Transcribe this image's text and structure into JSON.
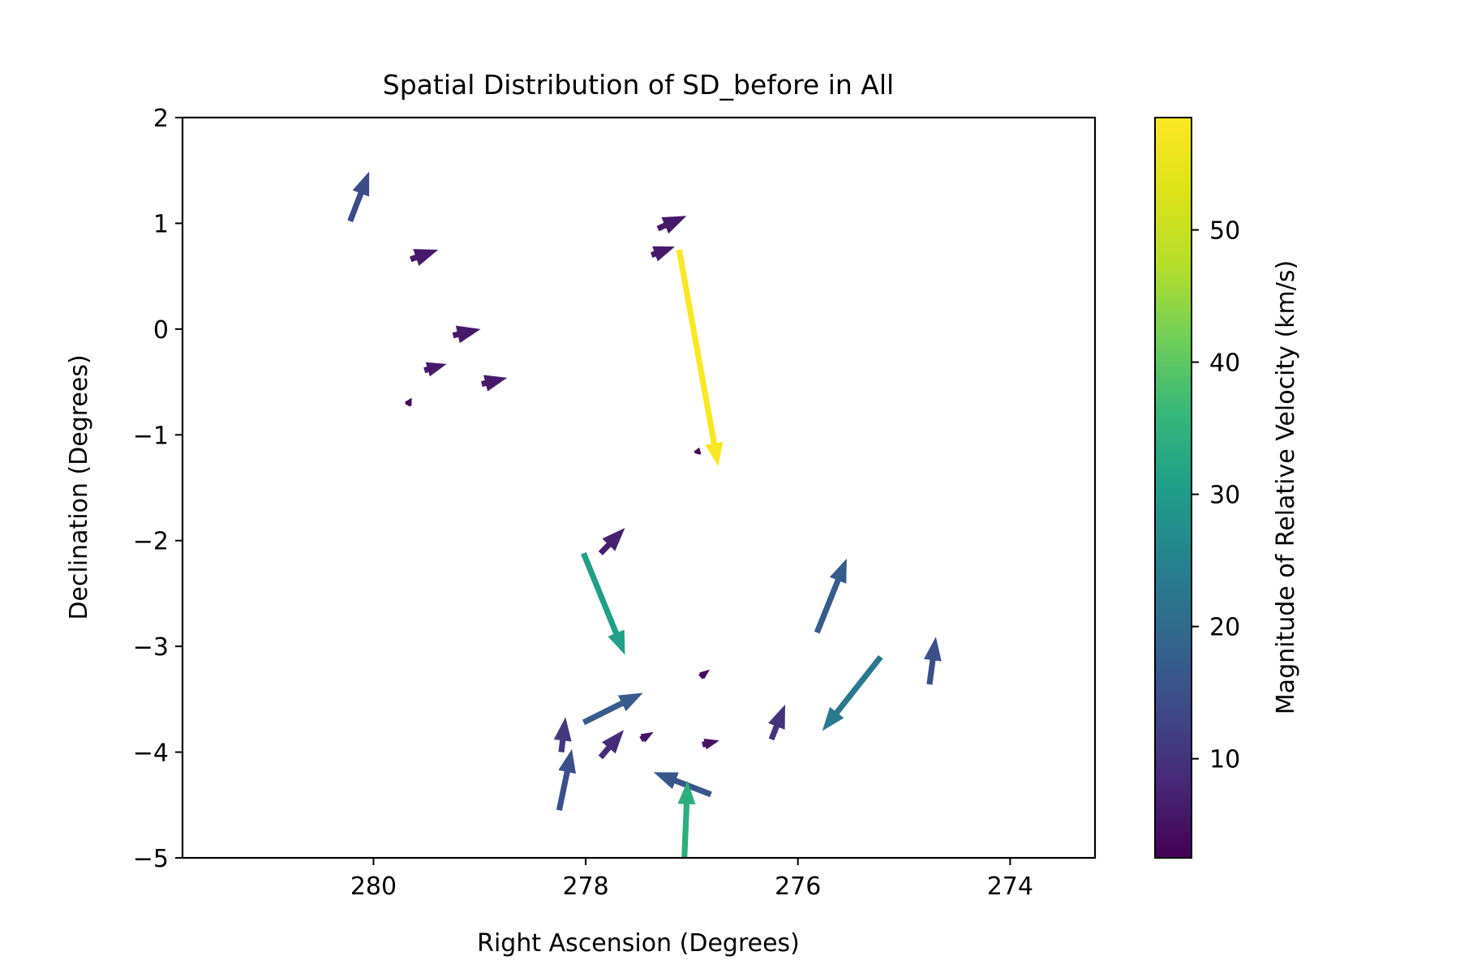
{
  "chart_data": {
    "type": "quiver",
    "title": "Spatial Distribution of SD_before in All",
    "xlabel": "Right Ascension (Degrees)",
    "ylabel": "Declination (Degrees)",
    "colorbar_label": "Magnitude of Relative Velocity (km/s)",
    "xlim": [
      281.8,
      273.2
    ],
    "ylim": [
      -5,
      2
    ],
    "x_inverted": true,
    "xticks": [
      280,
      278,
      276,
      274
    ],
    "xtick_labels": [
      "280",
      "278",
      "276",
      "274"
    ],
    "yticks": [
      2,
      1,
      0,
      -1,
      -2,
      -3,
      -4,
      -5
    ],
    "ytick_labels": [
      "2",
      "1",
      "0",
      "−1",
      "−2",
      "−3",
      "−4",
      "−5"
    ],
    "colorbar_range": [
      2.5,
      58.5
    ],
    "colorbar_ticks": [
      10,
      20,
      30,
      40,
      50
    ],
    "colorbar_tick_labels": [
      "10",
      "20",
      "30",
      "40",
      "50"
    ],
    "colormap": "viridis",
    "vectors": [
      {
        "ra": 280.22,
        "dec": 1.02,
        "dra": -0.18,
        "ddec": 0.47,
        "mag": 14
      },
      {
        "ra": 279.65,
        "dec": 0.66,
        "dra": -0.26,
        "ddec": 0.09,
        "mag": 6
      },
      {
        "ra": 279.25,
        "dec": -0.06,
        "dra": -0.26,
        "ddec": 0.06,
        "mag": 6
      },
      {
        "ra": 279.52,
        "dec": -0.39,
        "dra": -0.21,
        "ddec": 0.06,
        "mag": 6
      },
      {
        "ra": 278.98,
        "dec": -0.52,
        "dra": -0.24,
        "ddec": 0.06,
        "mag": 6
      },
      {
        "ra": 279.68,
        "dec": -0.72,
        "dra": -0.04,
        "ddec": 0.07,
        "mag": 4
      },
      {
        "ra": 277.32,
        "dec": 0.95,
        "dra": -0.27,
        "ddec": 0.12,
        "mag": 6
      },
      {
        "ra": 277.38,
        "dec": 0.7,
        "dra": -0.22,
        "ddec": 0.08,
        "mag": 6
      },
      {
        "ra": 277.12,
        "dec": 0.75,
        "dra": -0.37,
        "ddec": -2.05,
        "mag": 58
      },
      {
        "ra": 276.95,
        "dec": -1.18,
        "dra": -0.02,
        "ddec": 0.06,
        "mag": 3
      },
      {
        "ra": 277.86,
        "dec": -2.12,
        "dra": -0.23,
        "ddec": 0.24,
        "mag": 7
      },
      {
        "ra": 278.02,
        "dec": -2.12,
        "dra": -0.39,
        "ddec": -0.96,
        "mag": 31
      },
      {
        "ra": 275.82,
        "dec": -2.87,
        "dra": -0.28,
        "ddec": 0.7,
        "mag": 17
      },
      {
        "ra": 275.22,
        "dec": -3.1,
        "dra": 0.55,
        "ddec": -0.7,
        "mag": 23
      },
      {
        "ra": 274.76,
        "dec": -3.36,
        "dra": -0.06,
        "ddec": 0.45,
        "mag": 15
      },
      {
        "ra": 276.92,
        "dec": -3.29,
        "dra": -0.09,
        "ddec": 0.07,
        "mag": 4
      },
      {
        "ra": 278.02,
        "dec": -3.72,
        "dra": -0.56,
        "ddec": 0.28,
        "mag": 17
      },
      {
        "ra": 278.23,
        "dec": -4.0,
        "dra": -0.04,
        "ddec": 0.33,
        "mag": 11
      },
      {
        "ra": 277.86,
        "dec": -4.05,
        "dra": -0.22,
        "ddec": 0.26,
        "mag": 9
      },
      {
        "ra": 277.48,
        "dec": -3.88,
        "dra": -0.12,
        "ddec": 0.07,
        "mag": 5
      },
      {
        "ra": 276.9,
        "dec": -3.93,
        "dra": -0.16,
        "ddec": 0.04,
        "mag": 5
      },
      {
        "ra": 276.25,
        "dec": -3.88,
        "dra": -0.13,
        "ddec": 0.33,
        "mag": 10
      },
      {
        "ra": 278.25,
        "dec": -4.55,
        "dra": -0.12,
        "ddec": 0.58,
        "mag": 15
      },
      {
        "ra": 276.82,
        "dec": -4.4,
        "dra": 0.54,
        "ddec": 0.21,
        "mag": 16
      },
      {
        "ra": 277.07,
        "dec": -5.0,
        "dra": -0.03,
        "ddec": 0.73,
        "mag": 34
      }
    ]
  }
}
